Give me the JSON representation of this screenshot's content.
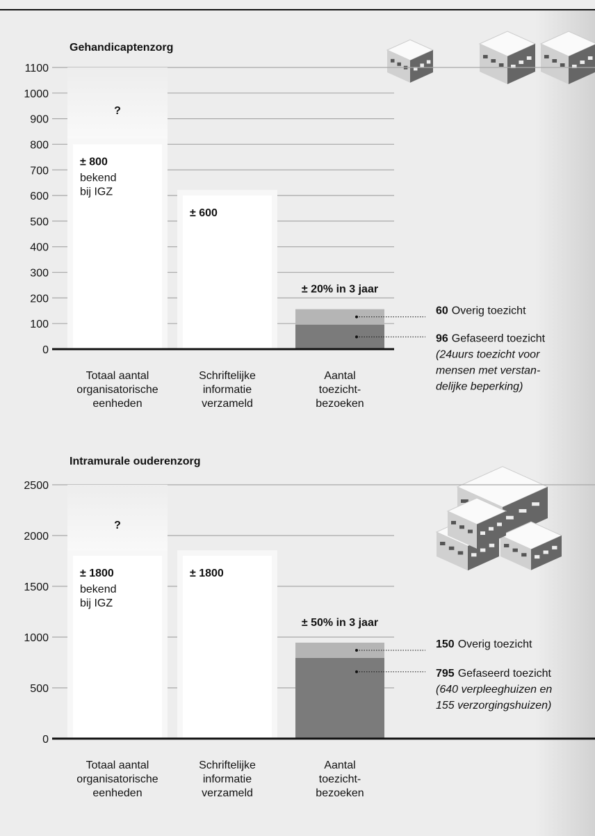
{
  "chart_data": [
    {
      "type": "bar",
      "title": "Gehandicaptenzorg",
      "categories": [
        "Totaal aantal\norganisatorische\neenheden",
        "Schriftelijke\ninformatie\nverzameld",
        "Aantal\ntoezicht-\nbezoeken"
      ],
      "values": [
        800,
        600,
        null
      ],
      "value_labels": [
        "± 800",
        "± 600",
        null
      ],
      "value_notes": [
        "bekend\nbij IGZ",
        null,
        null
      ],
      "unknown_label": "?",
      "color": "#ffffff",
      "series": [
        {
          "name": "Gefaseerd toezicht",
          "color": "#7b7b7b",
          "values": [
            null,
            null,
            96
          ],
          "note": "(24uurs toezicht voor\nmensen met verstan-\ndelijke beperking)"
        },
        {
          "name": "Overig toezicht",
          "color": "#b5b5b5",
          "values": [
            null,
            null,
            60
          ]
        }
      ],
      "stack_label": "± 20% in 3 jaar",
      "ylim": [
        0,
        1100
      ],
      "yticks": [
        0,
        100,
        200,
        300,
        400,
        500,
        600,
        700,
        800,
        900,
        1000,
        1100
      ],
      "grid": true
    },
    {
      "type": "bar",
      "title": "Intramurale ouderenzorg",
      "categories": [
        "Totaal aantal\norganisatorische\neenheden",
        "Schriftelijke\ninformatie\nverzameld",
        "Aantal\ntoezicht-\nbezoeken"
      ],
      "values": [
        1800,
        1800,
        null
      ],
      "value_labels": [
        "± 1800",
        "± 1800",
        null
      ],
      "value_notes": [
        "bekend\nbij IGZ",
        null,
        null
      ],
      "unknown_label": "?",
      "color": "#ffffff",
      "series": [
        {
          "name": "Gefaseerd toezicht",
          "color": "#7b7b7b",
          "values": [
            null,
            null,
            795
          ],
          "note": "(640 verpleeghuizen en\n155 verzorgingshuizen)"
        },
        {
          "name": "Overig toezicht",
          "color": "#b5b5b5",
          "values": [
            null,
            null,
            150
          ]
        }
      ],
      "stack_label": "± 50%  in 3 jaar",
      "ylim": [
        0,
        2500
      ],
      "yticks": [
        0,
        500,
        1000,
        1500,
        2000,
        2500
      ],
      "grid": true
    }
  ]
}
